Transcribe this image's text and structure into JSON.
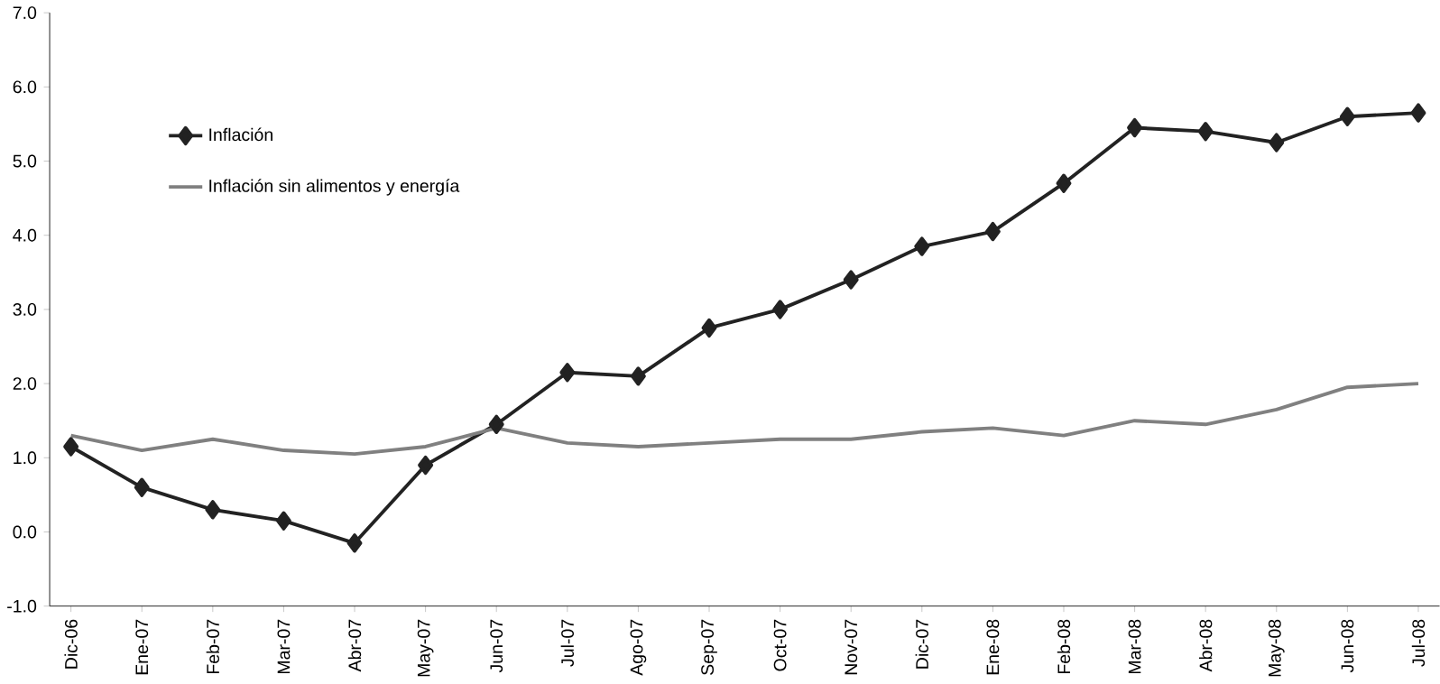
{
  "chart_data": {
    "type": "line",
    "categories": [
      "Dic-06",
      "Ene-07",
      "Feb-07",
      "Mar-07",
      "Abr-07",
      "May-07",
      "Jun-07",
      "Jul-07",
      "Ago-07",
      "Sep-07",
      "Oct-07",
      "Nov-07",
      "Dic-07",
      "Ene-08",
      "Feb-08",
      "Mar-08",
      "Abr-08",
      "May-08",
      "Jun-08",
      "Jul-08"
    ],
    "series": [
      {
        "name": "Inflación",
        "color": "#222222",
        "marker": "diamond",
        "values": [
          1.15,
          0.6,
          0.3,
          0.15,
          -0.15,
          0.9,
          1.45,
          2.15,
          2.1,
          2.75,
          3.0,
          3.4,
          3.85,
          4.05,
          4.7,
          5.45,
          5.4,
          5.25,
          5.6,
          5.65
        ]
      },
      {
        "name": "Inflación sin alimentos y energía",
        "color": "#808080",
        "marker": "none",
        "values": [
          1.3,
          1.1,
          1.25,
          1.1,
          1.05,
          1.15,
          1.4,
          1.2,
          1.15,
          1.2,
          1.25,
          1.25,
          1.35,
          1.4,
          1.3,
          1.5,
          1.45,
          1.65,
          1.95,
          2.0
        ]
      }
    ],
    "ylim": [
      -1,
      7
    ],
    "yticks": [
      {
        "value": -1,
        "label": "-1.0"
      },
      {
        "value": 0,
        "label": "0.0"
      },
      {
        "value": 1,
        "label": "1.0"
      },
      {
        "value": 2,
        "label": "2.0"
      },
      {
        "value": 3,
        "label": "3.0"
      },
      {
        "value": 4,
        "label": "4.0"
      },
      {
        "value": 5,
        "label": "5.0"
      },
      {
        "value": 6,
        "label": "6.0"
      },
      {
        "value": 7,
        "label": "7.0"
      }
    ],
    "grid": false,
    "legend": "top left",
    "line_style": "solid"
  }
}
